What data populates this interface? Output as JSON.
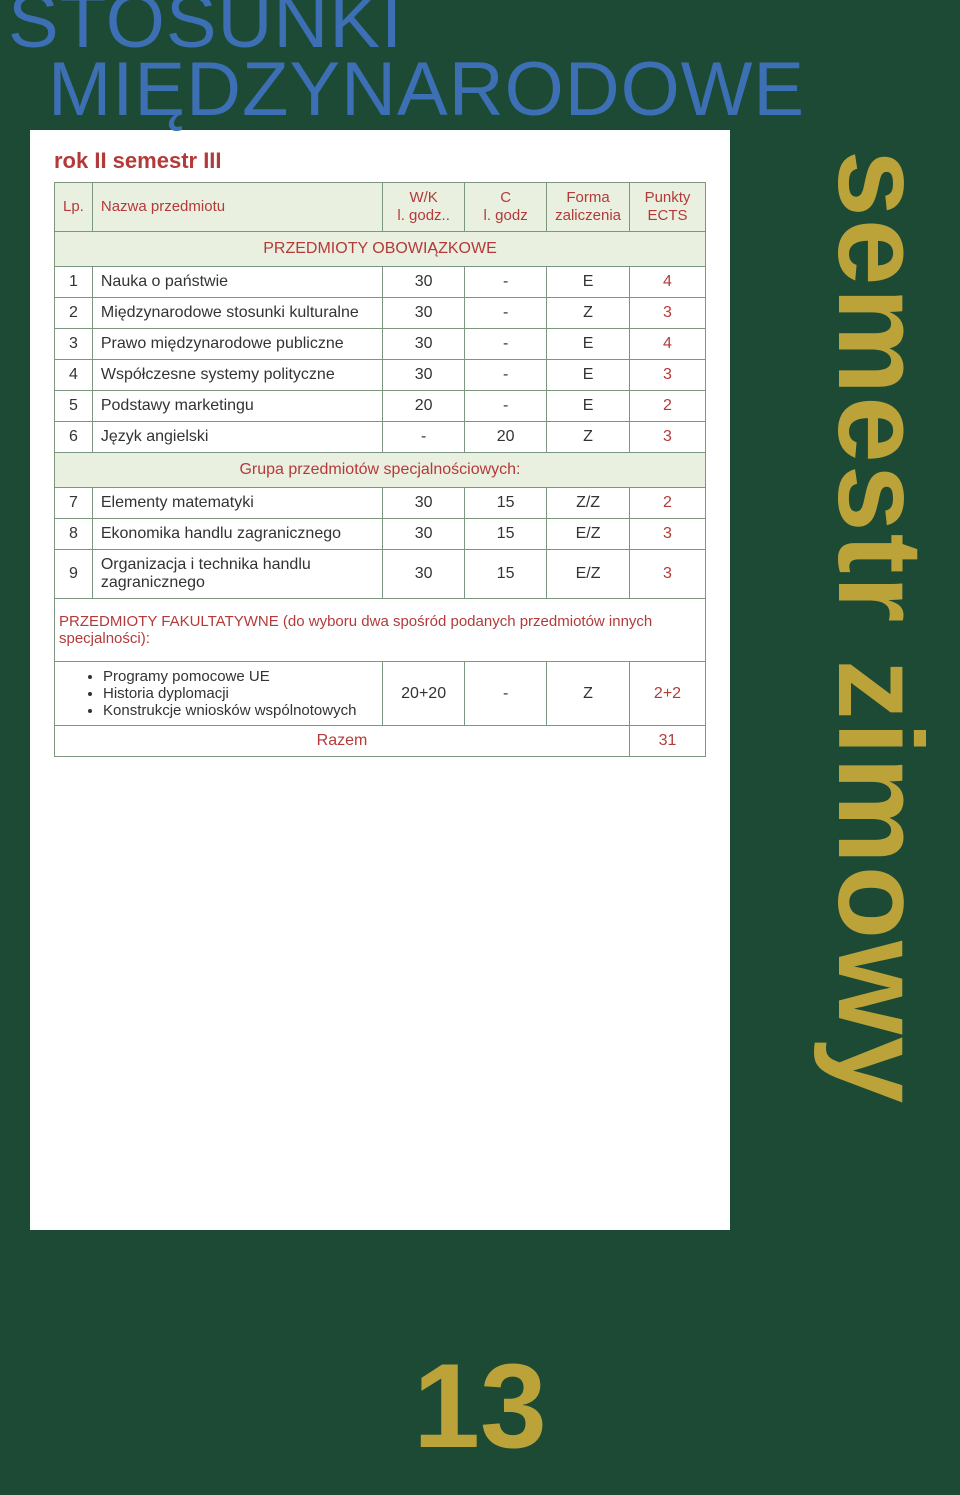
{
  "title_line1": "STOSUNKI",
  "title_line2": "MIĘDZYNARODOWE",
  "subtitle": "rok II semestr III",
  "side_text": "semestr zimowy",
  "page_number": "13",
  "table": {
    "header": {
      "lp": "Lp.",
      "name": "Nazwa przedmiotu",
      "wk_line1": "W/K",
      "wk_line2": "l. godz..",
      "c_line1": "C",
      "c_line2": "l. godz",
      "forma_line1": "Forma",
      "forma_line2": "zaliczenia",
      "pts_line1": "Punkty",
      "pts_line2": "ECTS"
    },
    "section1_label": "PRZEDMIOTY OBOWIĄZKOWE",
    "rows1": [
      {
        "n": "1",
        "name": "Nauka o państwie",
        "wk": "30",
        "c": "-",
        "f": "E",
        "p": "4"
      },
      {
        "n": "2",
        "name": "Międzynarodowe stosunki kulturalne",
        "wk": "30",
        "c": "-",
        "f": "Z",
        "p": "3"
      },
      {
        "n": "3",
        "name": "Prawo międzynarodowe publiczne",
        "wk": "30",
        "c": "-",
        "f": "E",
        "p": "4"
      },
      {
        "n": "4",
        "name": "Współczesne systemy polityczne",
        "wk": "30",
        "c": "-",
        "f": "E",
        "p": "3"
      },
      {
        "n": "5",
        "name": "Podstawy marketingu",
        "wk": "20",
        "c": "-",
        "f": "E",
        "p": "2"
      },
      {
        "n": "6",
        "name": "Język angielski",
        "wk": "-",
        "c": "20",
        "f": "Z",
        "p": "3"
      }
    ],
    "section2_label": "Grupa przedmiotów specjalnościowych:",
    "rows2": [
      {
        "n": "7",
        "name": "Elementy matematyki",
        "wk": "30",
        "c": "15",
        "f": "Z/Z",
        "p": "2"
      },
      {
        "n": "8",
        "name": "Ekonomika handlu zagranicznego",
        "wk": "30",
        "c": "15",
        "f": "E/Z",
        "p": "3"
      },
      {
        "n": "9",
        "name": "Organizacja i technika handlu zagranicznego",
        "wk": "30",
        "c": "15",
        "f": "E/Z",
        "p": "3"
      }
    ],
    "fak_note": "PRZEDMIOTY FAKULTATYWNE  (do wyboru dwa spośród podanych przedmiotów innych specjalności):",
    "bullets": [
      "Programy pomocowe UE",
      "Historia dyplomacji",
      "Konstrukcje wniosków wspólnotowych"
    ],
    "fak_row": {
      "wk": "20+20",
      "c": "-",
      "f": "Z",
      "p": "2+2"
    },
    "razem_label": "Razem",
    "razem_value": "31"
  },
  "colors": {
    "page_bg": "#1d4a34",
    "card_bg": "#ffffff",
    "header_bg": "#eaf0e0",
    "border": "#7d967f",
    "title_blue": "#3d6fb5",
    "accent_red": "#b43a3a",
    "accent_gold": "#bba33a",
    "text": "#333333"
  }
}
